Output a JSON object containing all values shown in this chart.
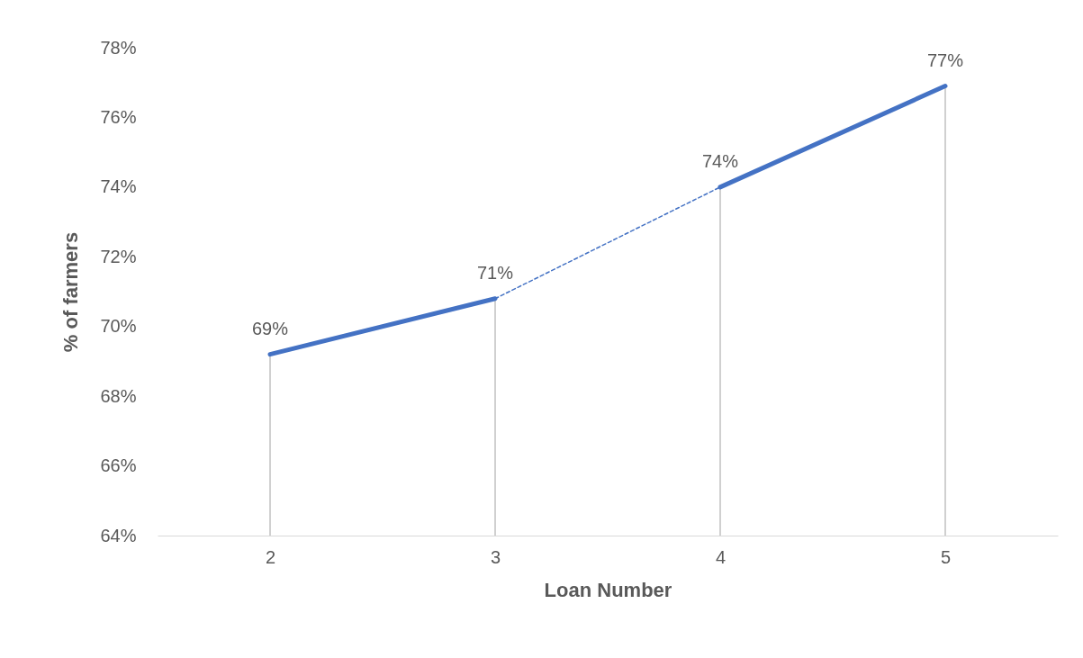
{
  "chart_data": {
    "type": "line",
    "xlabel": "Loan Number",
    "ylabel": "% of farmers",
    "categories": [
      "2",
      "3",
      "4",
      "5"
    ],
    "series": [
      {
        "color": "#4472c4",
        "line_style": "solid",
        "values": [
          69.2,
          70.8,
          null,
          null
        ],
        "value_labels": [
          "69%",
          "71%",
          null,
          null
        ]
      },
      {
        "color": "#4472c4",
        "line_style": "dashed",
        "values": [
          null,
          70.8,
          74.0,
          null
        ]
      },
      {
        "color": "#4472c4",
        "line_style": "solid",
        "values": [
          null,
          null,
          74.0,
          76.9
        ],
        "value_labels": [
          null,
          null,
          "74%",
          "77%"
        ]
      }
    ],
    "ylim": [
      64,
      78
    ],
    "yticks": [
      {
        "value": 64,
        "label": "64%"
      },
      {
        "value": 66,
        "label": "66%"
      },
      {
        "value": 68,
        "label": "68%"
      },
      {
        "value": 70,
        "label": "70%"
      },
      {
        "value": 72,
        "label": "72%"
      },
      {
        "value": 74,
        "label": "74%"
      },
      {
        "value": 76,
        "label": "76%"
      },
      {
        "value": 78,
        "label": "78%"
      }
    ],
    "grid": "x",
    "marker": "none"
  }
}
